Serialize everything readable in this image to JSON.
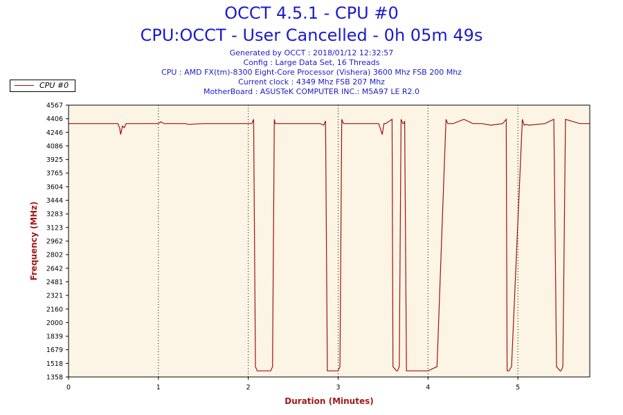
{
  "header": {
    "title": "OCCT 4.5.1 - CPU #0",
    "subtitle": "CPU:OCCT - User Cancelled - 0h 05m 49s",
    "info": [
      "Generated by OCCT : 2018/01/12 12:32:57",
      "Config : Large Data Set, 16 Threads",
      "CPU : AMD FX(tm)-8300 Eight-Core Processor (Vishera) 3600 Mhz FSB 200 Mhz",
      "Current clock : 4349 Mhz FSB 207 Mhz",
      "MotherBoard : ASUSTeK COMPUTER INC.: M5A97 LE R2.0"
    ]
  },
  "colors": {
    "plot_background": "#fcf4e4",
    "line": "#a01010",
    "text": "#1a1acc",
    "axis_label": "#a01a1a"
  },
  "chart_data": {
    "type": "line",
    "title": "OCCT 4.5.1 - CPU #0",
    "xlabel": "Duration (Minutes)",
    "ylabel": "Frequency (MHz)",
    "xlim": [
      0,
      5.8
    ],
    "ylim": [
      1358,
      4567
    ],
    "grid": true,
    "legend_position": "top-left",
    "x_ticks": [
      "0",
      "1",
      "2",
      "3",
      "4",
      "5"
    ],
    "y_ticks": [
      "4567",
      "4406",
      "4246",
      "4086",
      "3925",
      "3765",
      "3604",
      "3444",
      "3283",
      "3123",
      "2962",
      "2802",
      "2642",
      "2481",
      "2321",
      "2160",
      "2000",
      "1839",
      "1679",
      "1518",
      "1358"
    ],
    "series": [
      {
        "name": "CPU #0",
        "x": [
          0,
          0.55,
          0.57,
          0.58,
          0.6,
          0.62,
          0.64,
          1.0,
          1.03,
          1.06,
          1.3,
          1.33,
          1.5,
          2.04,
          2.06,
          2.08,
          2.1,
          2.25,
          2.27,
          2.29,
          2.3,
          2.8,
          2.84,
          2.86,
          2.88,
          3.0,
          3.02,
          3.04,
          3.06,
          3.45,
          3.47,
          3.49,
          3.51,
          3.53,
          3.6,
          3.61,
          3.65,
          3.66,
          3.68,
          3.7,
          3.72,
          3.73,
          3.74,
          3.76,
          3.78,
          4.0,
          4.1,
          4.2,
          4.22,
          4.24,
          4.26,
          4.27,
          4.28,
          4.4,
          4.5,
          4.6,
          4.7,
          4.83,
          4.87,
          4.88,
          4.9,
          4.93,
          5.05,
          5.07,
          5.09,
          5.12,
          5.3,
          5.4,
          5.43,
          5.47,
          5.48,
          5.5,
          5.53,
          5.69,
          5.7,
          5.71,
          5.72,
          5.8
        ],
        "y": [
          4349,
          4349,
          4290,
          4220,
          4320,
          4300,
          4349,
          4349,
          4370,
          4349,
          4349,
          4340,
          4349,
          4349,
          4400,
          1480,
          1430,
          1430,
          1480,
          4400,
          4349,
          4349,
          4330,
          4380,
          1430,
          1430,
          1480,
          4400,
          4349,
          4349,
          4290,
          4220,
          4349,
          4349,
          4400,
          1480,
          1430,
          1430,
          1480,
          4400,
          4349,
          4349,
          4380,
          1430,
          1430,
          1430,
          1480,
          4400,
          4349,
          4349,
          4349,
          4349,
          4349,
          4400,
          4349,
          4349,
          4330,
          4349,
          4400,
          1430,
          1430,
          1480,
          4400,
          4330,
          4340,
          4330,
          4349,
          4400,
          1480,
          1430,
          1430,
          1480,
          4400,
          4349,
          4349,
          4349,
          4349,
          4349
        ]
      }
    ]
  }
}
